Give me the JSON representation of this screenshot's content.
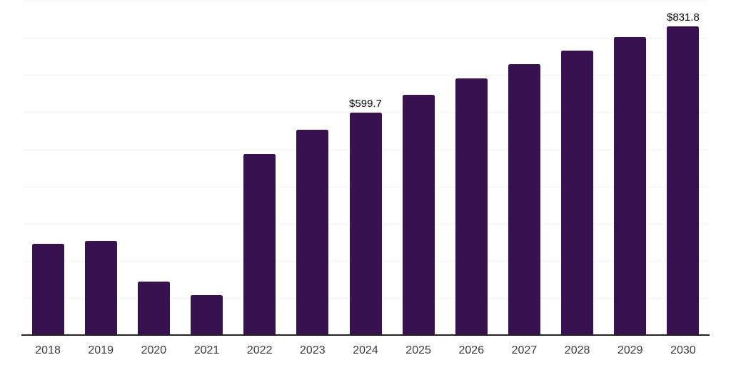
{
  "chart_data": {
    "type": "bar",
    "title": "",
    "xlabel": "",
    "ylabel": "",
    "categories": [
      "2018",
      "2019",
      "2020",
      "2021",
      "2022",
      "2023",
      "2024",
      "2025",
      "2026",
      "2027",
      "2028",
      "2029",
      "2030"
    ],
    "values": [
      245.7,
      253.4,
      144.0,
      107.5,
      488.1,
      553.4,
      599.7,
      647.4,
      691.0,
      729.9,
      766.4,
      801.7,
      831.8
    ],
    "value_labels": [
      {
        "category": "2024",
        "text": "$599.7"
      },
      {
        "category": "2030",
        "text": "$831.8"
      }
    ],
    "ylim": [
      0,
      900
    ],
    "grid_step": 100,
    "grid": "horizontal",
    "legend": "none",
    "colors": {
      "bar": "#38114F",
      "axis_line": "#222222",
      "gridline": "#f3f3f3",
      "tick_label": "#3c3c3c",
      "value_label": "#0a0a0a",
      "background": "#ffffff"
    }
  }
}
